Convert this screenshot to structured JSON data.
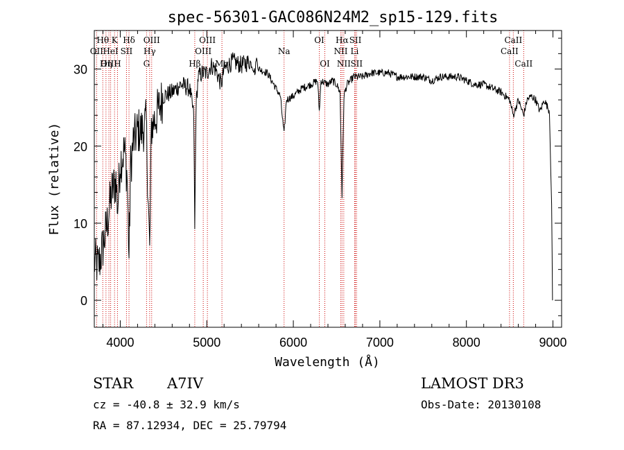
{
  "chart_data": {
    "type": "line",
    "title": "spec-56301-GAC086N24M2_sp15-129.fits",
    "xlabel": "Wavelength (Å)",
    "ylabel": "Flux (relative)",
    "xlim": [
      3700,
      9100
    ],
    "ylim": [
      -3.5,
      35
    ],
    "xticks": [
      4000,
      5000,
      6000,
      7000,
      8000,
      9000
    ],
    "xtick_labels": [
      "4000",
      "5000",
      "6000",
      "7000",
      "8000",
      "9000"
    ],
    "yticks": [
      0,
      10,
      20,
      30
    ],
    "ytick_labels": [
      "0",
      "10",
      "20",
      "30"
    ],
    "series": [
      {
        "name": "flux",
        "color": "#000000",
        "points": [
          [
            3700,
            5.0
          ],
          [
            3750,
            4.5
          ],
          [
            3800,
            7.0
          ],
          [
            3850,
            10.0
          ],
          [
            3900,
            14.0
          ],
          [
            3950,
            15.5
          ],
          [
            3970,
            12.0
          ],
          [
            4000,
            18.0
          ],
          [
            4050,
            19.5
          ],
          [
            4080,
            16.0
          ],
          [
            4101,
            5.5
          ],
          [
            4120,
            17.5
          ],
          [
            4150,
            20.5
          ],
          [
            4200,
            22.0
          ],
          [
            4250,
            22.0
          ],
          [
            4300,
            23.0
          ],
          [
            4340,
            6.0
          ],
          [
            4360,
            22.5
          ],
          [
            4400,
            23.5
          ],
          [
            4450,
            25.0
          ],
          [
            4500,
            26.5
          ],
          [
            4600,
            27.0
          ],
          [
            4700,
            28.0
          ],
          [
            4800,
            27.5
          ],
          [
            4850,
            24.0
          ],
          [
            4861,
            9.0
          ],
          [
            4875,
            25.0
          ],
          [
            4900,
            29.0
          ],
          [
            4950,
            29.5
          ],
          [
            5000,
            29.5
          ],
          [
            5050,
            30.5
          ],
          [
            5100,
            30.0
          ],
          [
            5167,
            28.0
          ],
          [
            5200,
            30.0
          ],
          [
            5300,
            31.0
          ],
          [
            5400,
            30.5
          ],
          [
            5500,
            31.0
          ],
          [
            5560,
            29.5
          ],
          [
            5570,
            31.5
          ],
          [
            5600,
            30.0
          ],
          [
            5700,
            29.5
          ],
          [
            5800,
            27.5
          ],
          [
            5850,
            26.5
          ],
          [
            5893,
            21.5
          ],
          [
            5920,
            26.0
          ],
          [
            6000,
            26.5
          ],
          [
            6100,
            27.5
          ],
          [
            6200,
            28.0
          ],
          [
            6280,
            28.5
          ],
          [
            6300,
            24.5
          ],
          [
            6320,
            28.5
          ],
          [
            6400,
            28.0
          ],
          [
            6450,
            28.5
          ],
          [
            6500,
            28.0
          ],
          [
            6540,
            27.0
          ],
          [
            6563,
            13.5
          ],
          [
            6585,
            26.5
          ],
          [
            6620,
            28.0
          ],
          [
            6700,
            29.0
          ],
          [
            6800,
            29.0
          ],
          [
            6900,
            29.5
          ],
          [
            7000,
            29.5
          ],
          [
            7100,
            29.5
          ],
          [
            7200,
            29.0
          ],
          [
            7300,
            29.0
          ],
          [
            7400,
            29.0
          ],
          [
            7500,
            29.0
          ],
          [
            7600,
            28.5
          ],
          [
            7700,
            29.0
          ],
          [
            7800,
            29.0
          ],
          [
            7900,
            29.0
          ],
          [
            8000,
            28.5
          ],
          [
            8100,
            28.0
          ],
          [
            8200,
            28.0
          ],
          [
            8300,
            27.5
          ],
          [
            8400,
            27.0
          ],
          [
            8500,
            26.0
          ],
          [
            8542,
            24.0
          ],
          [
            8600,
            26.0
          ],
          [
            8662,
            24.0
          ],
          [
            8700,
            26.0
          ],
          [
            8750,
            26.5
          ],
          [
            8800,
            26.0
          ],
          [
            8850,
            24.5
          ],
          [
            8900,
            26.0
          ],
          [
            8960,
            24.5
          ],
          [
            8985,
            12.0
          ],
          [
            8995,
            0.0
          ]
        ]
      }
    ],
    "lines": [
      {
        "name": "H-theta",
        "label": "Hθ",
        "wave": 3798,
        "row": 1
      },
      {
        "name": "O-II",
        "label": "OII",
        "wave": 3727,
        "row": 2
      },
      {
        "name": "O-III-3869",
        "label": "OIII",
        "wave": 3869,
        "row": 3
      },
      {
        "name": "K",
        "label": "K",
        "wave": 3934,
        "row": 1
      },
      {
        "name": "He-I",
        "label": "HeI",
        "wave": 3889,
        "row": 2
      },
      {
        "name": "H-eta",
        "label": "Hη",
        "wave": 3835,
        "row": 3
      },
      {
        "name": "H",
        "label": "H",
        "wave": 3968,
        "row": 3
      },
      {
        "name": "H-delta",
        "label": "Hδ",
        "wave": 4101,
        "row": 1
      },
      {
        "name": "S-II-4072",
        "label": "SII",
        "wave": 4072,
        "row": 2
      },
      {
        "name": "O-III-4363",
        "label": "OIII",
        "wave": 4363,
        "row": 1
      },
      {
        "name": "H-gamma",
        "label": "Hγ",
        "wave": 4340,
        "row": 2
      },
      {
        "name": "G-band",
        "label": "G",
        "wave": 4304,
        "row": 3
      },
      {
        "name": "H-beta",
        "label": "Hβ",
        "wave": 4861,
        "row": 3
      },
      {
        "name": "O-III-5007",
        "label": "OIII",
        "wave": 5007,
        "row": 1
      },
      {
        "name": "O-III-4959",
        "label": "OIII",
        "wave": 4959,
        "row": 2
      },
      {
        "name": "Mg",
        "label": "Mg",
        "wave": 5175,
        "row": 3
      },
      {
        "name": "Na",
        "label": "Na",
        "wave": 5893,
        "row": 2
      },
      {
        "name": "O-I-6300",
        "label": "OI",
        "wave": 6300,
        "row": 1
      },
      {
        "name": "O-I-6364",
        "label": "OI",
        "wave": 6364,
        "row": 3
      },
      {
        "name": "H-alpha",
        "label": "Hα",
        "wave": 6563,
        "row": 1
      },
      {
        "name": "N-II-6548",
        "label": "NII",
        "wave": 6548,
        "row": 2
      },
      {
        "name": "N-II-6583",
        "label": "NII",
        "wave": 6583,
        "row": 3
      },
      {
        "name": "S-II-6717",
        "label": "SII",
        "wave": 6717,
        "row": 1
      },
      {
        "name": "Li",
        "label": "Li",
        "wave": 6708,
        "row": 2
      },
      {
        "name": "S-II-6731",
        "label": "SII",
        "wave": 6731,
        "row": 3
      },
      {
        "name": "Ca-II-8542",
        "label": "CaII",
        "wave": 8542,
        "row": 1
      },
      {
        "name": "Ca-II-8498",
        "label": "CaII",
        "wave": 8498,
        "row": 2
      },
      {
        "name": "Ca-II-8662",
        "label": "CaII",
        "wave": 8662,
        "row": 3
      }
    ],
    "line_color": "#cc0000"
  },
  "info": {
    "obj_class": "STAR",
    "subclass": "A7IV",
    "redshift": "cz = -40.8 ± 32.9 km/s",
    "coords": "RA =  87.12934, DEC =  25.79794",
    "survey": "LAMOST DR3",
    "obs_date": "Obs-Date: 20130108"
  }
}
